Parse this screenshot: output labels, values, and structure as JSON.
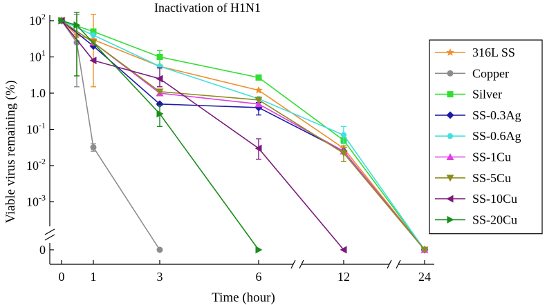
{
  "chart_data": {
    "type": "line",
    "title": "Inactivation of H1N1",
    "xlabel": "Time (hour)",
    "ylabel": "Viable virus remaining (%)",
    "y_scale": "log",
    "x_axis_broken": true,
    "y_axis_broken": true,
    "x_tick_labels": [
      "0",
      "1",
      "3",
      "6",
      "12",
      "24"
    ],
    "y_tick_labels": [
      {
        "base": "10",
        "exp": "2"
      },
      {
        "base": "10",
        "exp": ""
      },
      {
        "base": "10",
        "exp": "-1",
        "plain": "1.0"
      },
      {
        "base": "10",
        "exp": "-1"
      },
      {
        "base": "10",
        "exp": "-2"
      },
      {
        "base": "10",
        "exp": "-3"
      },
      {
        "base": "",
        "exp": "",
        "plain": "0"
      }
    ],
    "y_ticks": [
      {
        "label": "10",
        "sup": "2",
        "value": 100
      },
      {
        "label": "10",
        "sup": "1",
        "value": 10
      },
      {
        "label": "1.0",
        "sup": "",
        "value": 1
      },
      {
        "label": "10",
        "sup": "-1",
        "value": 0.1
      },
      {
        "label": "10",
        "sup": "-2",
        "value": 0.01
      },
      {
        "label": "10",
        "sup": "-3",
        "value": 0.001
      },
      {
        "label": "0",
        "sup": "",
        "value": 0
      }
    ],
    "legend_position": "right",
    "grid": false,
    "series": [
      {
        "name": "316L SS",
        "color": "#f28e2b",
        "marker": "star",
        "x": [
          0,
          0.5,
          1,
          3,
          6,
          12,
          24
        ],
        "y": [
          100,
          40,
          30,
          5.5,
          1.2,
          0.03,
          0
        ],
        "err": [
          [
            0.5,
            3,
            150
          ],
          [
            1,
            1.5,
            150
          ]
        ]
      },
      {
        "name": "Copper",
        "color": "#8c8c8c",
        "marker": "circle",
        "x": [
          0,
          0.5,
          1,
          3
        ],
        "y": [
          100,
          25,
          0.032,
          0
        ],
        "err": [
          [
            0.5,
            1.5,
            150
          ],
          [
            1,
            0.025,
            0.04
          ]
        ]
      },
      {
        "name": "Silver",
        "color": "#33dd33",
        "marker": "square",
        "x": [
          0,
          1,
          3,
          6,
          12,
          24
        ],
        "y": [
          100,
          50,
          10,
          2.7,
          0.05,
          0
        ],
        "err": [
          [
            3,
            6,
            15
          ]
        ]
      },
      {
        "name": "SS-0.3Ag",
        "color": "#1a1aa6",
        "marker": "diamond",
        "x": [
          0,
          1,
          3,
          6,
          12,
          24
        ],
        "y": [
          100,
          20,
          0.5,
          0.4,
          0.025,
          0
        ],
        "err": [
          [
            6,
            0.25,
            0.55
          ]
        ]
      },
      {
        "name": "SS-0.6Ag",
        "color": "#40e0e0",
        "marker": "hexagon",
        "x": [
          0,
          1,
          3,
          6,
          12,
          24
        ],
        "y": [
          100,
          40,
          5.5,
          0.7,
          0.07,
          0
        ],
        "err": [
          [
            12,
            0.04,
            0.12
          ]
        ]
      },
      {
        "name": "SS-1Cu",
        "color": "#e040e0",
        "marker": "triangle-up",
        "x": [
          0,
          1,
          3,
          6,
          12,
          24
        ],
        "y": [
          100,
          25,
          1.0,
          0.5,
          0.025,
          0
        ],
        "err": []
      },
      {
        "name": "SS-5Cu",
        "color": "#8c8c1a",
        "marker": "triangle-down",
        "x": [
          0,
          1,
          3,
          6,
          12,
          24
        ],
        "y": [
          100,
          25,
          1.1,
          0.65,
          0.022,
          0
        ],
        "err": [
          [
            12,
            0.013,
            0.035
          ]
        ]
      },
      {
        "name": "SS-10Cu",
        "color": "#7a1a7a",
        "marker": "triangle-left",
        "x": [
          0,
          1,
          3,
          6,
          12
        ],
        "y": [
          100,
          8,
          2.5,
          0.03,
          0
        ],
        "err": [
          [
            3,
            1.5,
            5
          ],
          [
            6,
            0.015,
            0.055
          ]
        ]
      },
      {
        "name": "SS-20Cu",
        "color": "#1a8c1a",
        "marker": "triangle-right",
        "x": [
          0,
          0.5,
          3,
          6
        ],
        "y": [
          100,
          75,
          0.27,
          0
        ],
        "err": [
          [
            0.5,
            3,
            170
          ],
          [
            3,
            0.12,
            0.45
          ]
        ]
      }
    ]
  }
}
